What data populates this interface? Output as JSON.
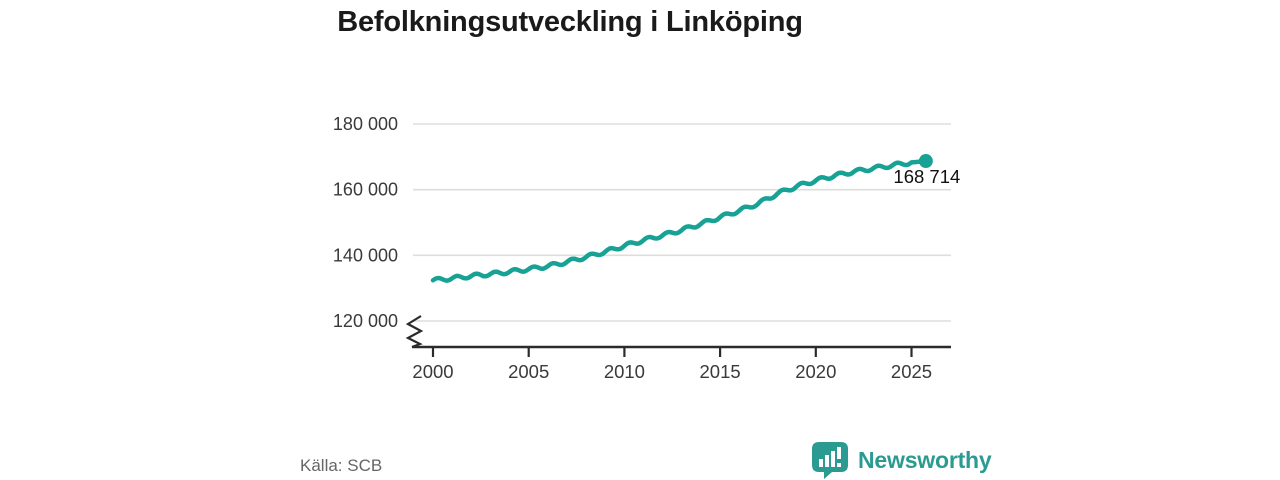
{
  "title": "Befolkningsutveckling i Linköping",
  "source": "Källa: SCB",
  "branding": {
    "name": "Newsworthy",
    "icon": "newsworthy-speech-bubble-bar-chart-icon",
    "color": "#2b9a91"
  },
  "chart_data": {
    "type": "line",
    "title": "Befolkningsutveckling i Linköping",
    "x": [
      2000,
      2001,
      2002,
      2003,
      2004,
      2005,
      2006,
      2007,
      2008,
      2009,
      2010,
      2011,
      2012,
      2013,
      2014,
      2015,
      2016,
      2017,
      2018,
      2019,
      2020,
      2021,
      2022,
      2023,
      2024,
      2025,
      2025.75
    ],
    "values": [
      132400,
      133000,
      133700,
      134300,
      135000,
      135800,
      136700,
      138000,
      139500,
      141100,
      142900,
      144600,
      146100,
      147700,
      149600,
      151600,
      153600,
      155800,
      158800,
      161000,
      162800,
      164300,
      165500,
      166500,
      167400,
      168300,
      168714
    ],
    "series_name": "Befolkning",
    "end_value": 168714,
    "end_label": "168 714",
    "x_ticks": [
      2000,
      2005,
      2010,
      2015,
      2020,
      2025
    ],
    "y_ticks": [
      120000,
      140000,
      160000,
      180000
    ],
    "y_tick_labels": [
      "120 000",
      "140 000",
      "160 000",
      "180 000"
    ],
    "ylim": [
      120000,
      180000
    ],
    "xlim": [
      2000,
      2027
    ],
    "axis_break": true,
    "grid": "horizontal",
    "legend": "none",
    "line_color": "#18a296",
    "grid_color": "#dddddd",
    "axis_color": "#2b2b2b",
    "tick_label_color": "#3a3a3a",
    "end_label_color": "#111111",
    "xlabel": "",
    "ylabel": ""
  }
}
